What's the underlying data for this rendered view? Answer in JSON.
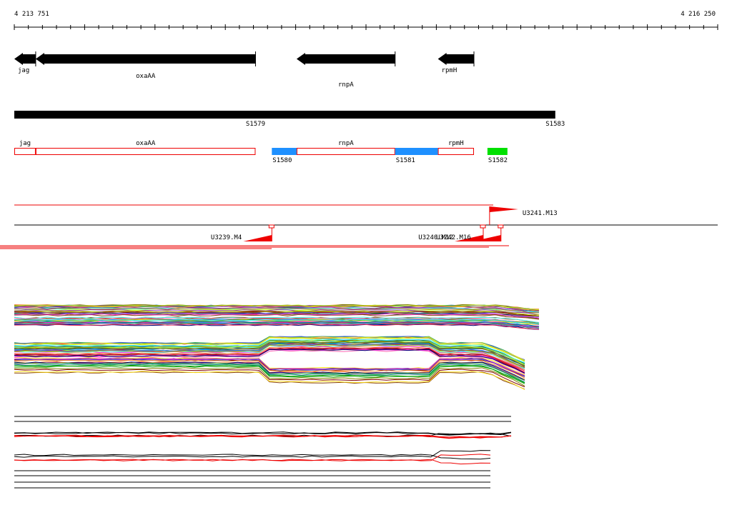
{
  "ruler": {
    "start_label": "4 213 751",
    "end_label": "4 216 250",
    "start_bp": 4213751,
    "end_bp": 4216250
  },
  "colors": {
    "gene": "#000000",
    "outline": "#ee0000",
    "transcript_blue": "#1e90ff",
    "transcript_green": "#00e000",
    "marker": "#ee0000"
  },
  "genes": [
    {
      "name": "jag",
      "start": 4213751,
      "end": 4213827,
      "strand": "-",
      "label": "jag",
      "label_row": "upper"
    },
    {
      "name": "oxaAA",
      "start": 4213827,
      "end": 4214608,
      "strand": "-",
      "label": "oxaAA",
      "label_row": "lower"
    },
    {
      "name": "rnpA",
      "start": 4214754,
      "end": 4215104,
      "strand": "-",
      "label": "rnpA",
      "label_row": "lowest"
    },
    {
      "name": "rpmH",
      "start": 4215256,
      "end": 4215384,
      "strand": "-",
      "label": "rpmH",
      "label_row": "upper"
    }
  ],
  "segments": [
    {
      "label": "S1579",
      "start": 4213751,
      "end": 4215673
    }
  ],
  "segment_labels": [
    {
      "label": "S1579",
      "at": 4214608
    },
    {
      "label": "S1583",
      "at": 4215673
    }
  ],
  "features": [
    {
      "label": "jag",
      "start": 4213751,
      "end": 4213827,
      "fill": "none"
    },
    {
      "label": "oxaAA",
      "start": 4213827,
      "end": 4214608,
      "fill": "none"
    },
    {
      "label": "S1580",
      "start": 4214666,
      "end": 4214754,
      "fill": "blue",
      "label_below": true
    },
    {
      "label": "rnpA",
      "start": 4214754,
      "end": 4215104,
      "fill": "none"
    },
    {
      "label": "S1581",
      "start": 4215104,
      "end": 4215256,
      "fill": "blue",
      "label_below": true
    },
    {
      "label": "rpmH",
      "start": 4215256,
      "end": 4215384,
      "fill": "none"
    },
    {
      "label": "S1582",
      "start": 4215432,
      "end": 4215503,
      "fill": "green",
      "label_below": true
    }
  ],
  "markers": [
    {
      "label": "U3241.M13",
      "pos": 4215470,
      "side": "above"
    },
    {
      "label": "U3239.M4",
      "pos": 4214666,
      "side": "below"
    },
    {
      "label": "U3240.M12",
      "pos": 4215417,
      "side": "below"
    },
    {
      "label": "U3242.M16",
      "pos": 4215480,
      "side": "below"
    }
  ]
}
